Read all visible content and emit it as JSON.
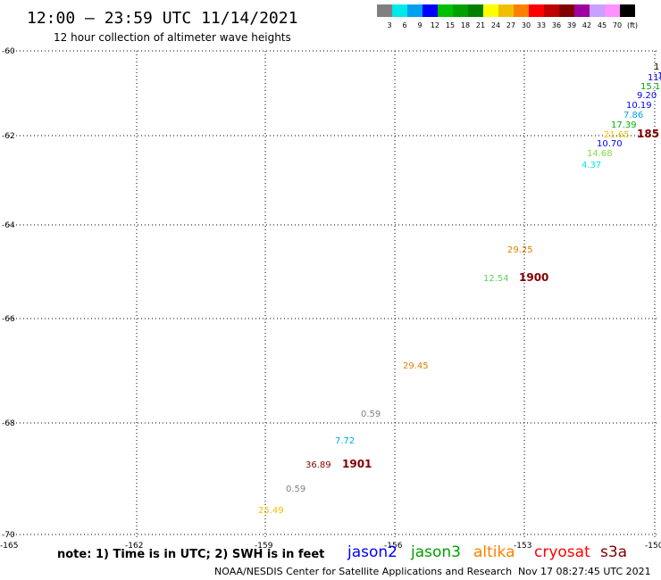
{
  "header": {
    "title": "12:00 – 23:59 UTC 11/14/2021",
    "subtitle": "12 hour collection of altimeter wave heights"
  },
  "color_scale": {
    "colors": [
      "#808080",
      "#00e8e8",
      "#00a0f0",
      "#0000ff",
      "#00c000",
      "#00a000",
      "#008000",
      "#ffff00",
      "#f0c000",
      "#ff8000",
      "#ff0000",
      "#c00000",
      "#800000",
      "#a000a0",
      "#c8a0ff",
      "#ff90ff",
      "#000000"
    ],
    "labels": [
      "3",
      "6",
      "9",
      "12",
      "15",
      "18",
      "21",
      "24",
      "27",
      "30",
      "33",
      "36",
      "39",
      "42",
      "45",
      "70",
      "(ft)"
    ]
  },
  "axes": {
    "lat_labels": [
      "-60",
      "-62",
      "-64",
      "-66",
      "-68",
      "-70"
    ],
    "lon_labels": [
      "-165",
      "-162",
      "-159",
      "-156",
      "-153",
      "-150"
    ]
  },
  "observations": [
    {
      "text": "1",
      "color": "#000000"
    },
    {
      "text": "1",
      "color": "#0000c0"
    },
    {
      "text": "11.",
      "color": "#0000ff"
    },
    {
      "text": "15.1",
      "color": "#00a000"
    },
    {
      "text": "9.20",
      "color": "#0000ff"
    },
    {
      "text": "10.19",
      "color": "#0000ff"
    },
    {
      "text": "7.86",
      "color": "#00a0f0"
    },
    {
      "text": "17.39",
      "color": "#00b000"
    },
    {
      "text": "21.65",
      "color": "#f0c000"
    },
    {
      "text": "10.70",
      "color": "#0000ff"
    },
    {
      "text": "14.68",
      "color": "#80e040"
    },
    {
      "text": "4.37",
      "color": "#00e8e8"
    },
    {
      "text": "29.25",
      "color": "#e08000"
    },
    {
      "text": "12.54",
      "color": "#60d060"
    },
    {
      "text": "29.45",
      "color": "#e08000"
    },
    {
      "text": "0.59",
      "color": "#808080"
    },
    {
      "text": "7.72",
      "color": "#00b0d0"
    },
    {
      "text": "36.89",
      "color": "#800000"
    },
    {
      "text": "0.59",
      "color": "#808080"
    },
    {
      "text": "25.49",
      "color": "#f0c000"
    }
  ],
  "cycle_labels": [
    {
      "text": "185",
      "color": "#800000"
    },
    {
      "text": "1900",
      "color": "#800000"
    },
    {
      "text": "1901",
      "color": "#800000"
    }
  ],
  "footer": {
    "note": "note:  1) Time is in UTC;  2) SWH is in feet",
    "satellites": [
      {
        "name": "jason2",
        "color": "#0000ff"
      },
      {
        "name": "jason3",
        "color": "#00a000"
      },
      {
        "name": "altika",
        "color": "#ff8000"
      },
      {
        "name": "cryosat",
        "color": "#ff0000"
      },
      {
        "name": "s3a",
        "color": "#800000"
      }
    ],
    "credit": "NOAA/NESDIS Center for Satellite Applications and Research",
    "timestamp": "Nov 17 08:27:45 UTC 2021"
  }
}
